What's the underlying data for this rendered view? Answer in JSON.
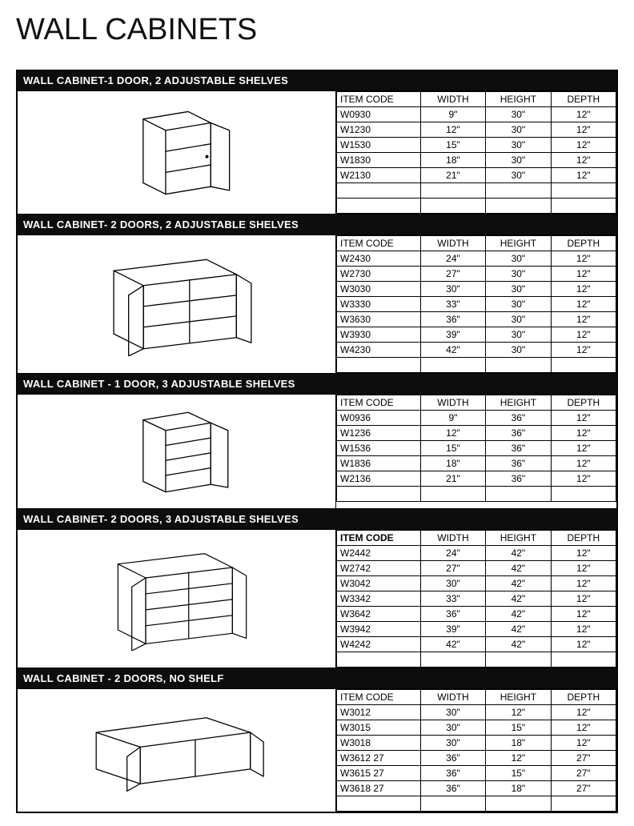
{
  "colors": {
    "header_bg": "#0d0d0d",
    "header_fg": "#ffffff",
    "border": "#000000",
    "page_bg": "#ffffff",
    "text": "#111111"
  },
  "page_title": "WALL CABINETS",
  "columns": {
    "item_code": "ITEM CODE",
    "width": "WIDTH",
    "height": "HEIGHT",
    "depth": "DEPTH"
  },
  "sections": [
    {
      "id": "1door2shelf",
      "title": "WALL CABINET-1 DOOR, 2 ADJUSTABLE SHELVES",
      "illustration": "cabinet-1door-2shelf",
      "rows": [
        {
          "code": "W0930",
          "w": "9\"",
          "h": "30\"",
          "d": "12\""
        },
        {
          "code": "W1230",
          "w": "12\"",
          "h": "30\"",
          "d": "12\""
        },
        {
          "code": "W1530",
          "w": "15\"",
          "h": "30\"",
          "d": "12\""
        },
        {
          "code": "W1830",
          "w": "18\"",
          "h": "30\"",
          "d": "12\""
        },
        {
          "code": "W2130",
          "w": "21\"",
          "h": "30\"",
          "d": "12\""
        }
      ],
      "trailing_blank_rows": 2
    },
    {
      "id": "2door2shelf",
      "title": "WALL CABINET- 2 DOORS, 2 ADJUSTABLE SHELVES",
      "illustration": "cabinet-2door-2shelf",
      "rows": [
        {
          "code": "W2430",
          "w": "24\"",
          "h": "30\"",
          "d": "12\""
        },
        {
          "code": "W2730",
          "w": "27\"",
          "h": "30\"",
          "d": "12\""
        },
        {
          "code": "W3030",
          "w": "30\"",
          "h": "30\"",
          "d": "12\""
        },
        {
          "code": "W3330",
          "w": "33\"",
          "h": "30\"",
          "d": "12\""
        },
        {
          "code": "W3630",
          "w": "36\"",
          "h": "30\"",
          "d": "12\""
        },
        {
          "code": "W3930",
          "w": "39\"",
          "h": "30\"",
          "d": "12\""
        },
        {
          "code": "W4230",
          "w": "42\"",
          "h": "30\"",
          "d": "12\""
        }
      ],
      "trailing_blank_rows": 1
    },
    {
      "id": "1door3shelf",
      "title": "WALL CABINET - 1 DOOR, 3 ADJUSTABLE SHELVES",
      "illustration": "cabinet-1door-3shelf",
      "rows": [
        {
          "code": "W0936",
          "w": "9\"",
          "h": "36\"",
          "d": "12\""
        },
        {
          "code": "W1236",
          "w": "12\"",
          "h": "36\"",
          "d": "12\""
        },
        {
          "code": "W1536",
          "w": "15\"",
          "h": "36\"",
          "d": "12\""
        },
        {
          "code": "W1836",
          "w": "18\"",
          "h": "36\"",
          "d": "12\""
        },
        {
          "code": "W2136",
          "w": "21\"",
          "h": "36\"",
          "d": "12\""
        }
      ],
      "trailing_blank_rows": 1
    },
    {
      "id": "2door3shelf",
      "title": "WALL CABINET- 2 DOORS, 3 ADJUSTABLE SHELVES",
      "illustration": "cabinet-2door-3shelf",
      "bold_header": true,
      "rows": [
        {
          "code": "W2442",
          "w": "24\"",
          "h": "42\"",
          "d": "12\""
        },
        {
          "code": "W2742",
          "w": "27\"",
          "h": "42\"",
          "d": "12\""
        },
        {
          "code": "W3042",
          "w": "30\"",
          "h": "42\"",
          "d": "12\""
        },
        {
          "code": "W3342",
          "w": "33\"",
          "h": "42\"",
          "d": "12\""
        },
        {
          "code": "W3642",
          "w": "36\"",
          "h": "42\"",
          "d": "12\""
        },
        {
          "code": "W3942",
          "w": "39\"",
          "h": "42\"",
          "d": "12\""
        },
        {
          "code": "W4242",
          "w": "42\"",
          "h": "42\"",
          "d": "12\""
        }
      ],
      "trailing_blank_rows": 1
    },
    {
      "id": "2door0shelf",
      "title": "WALL CABINET - 2 DOORS, NO SHELF",
      "illustration": "cabinet-2door-noshelf",
      "rows": [
        {
          "code": "W3012",
          "w": "30\"",
          "h": "12\"",
          "d": "12\""
        },
        {
          "code": "W3015",
          "w": "30\"",
          "h": "15\"",
          "d": "12\""
        },
        {
          "code": "W3018",
          "w": "30\"",
          "h": "18\"",
          "d": "12\""
        },
        {
          "code": "W3612 27",
          "w": "36\"",
          "h": "12\"",
          "d": "27\""
        },
        {
          "code": "W3615 27",
          "w": "36\"",
          "h": "15\"",
          "d": "27\""
        },
        {
          "code": "W3618 27",
          "w": "36\"",
          "h": "18\"",
          "d": "27\""
        }
      ],
      "trailing_blank_rows": 1
    }
  ]
}
